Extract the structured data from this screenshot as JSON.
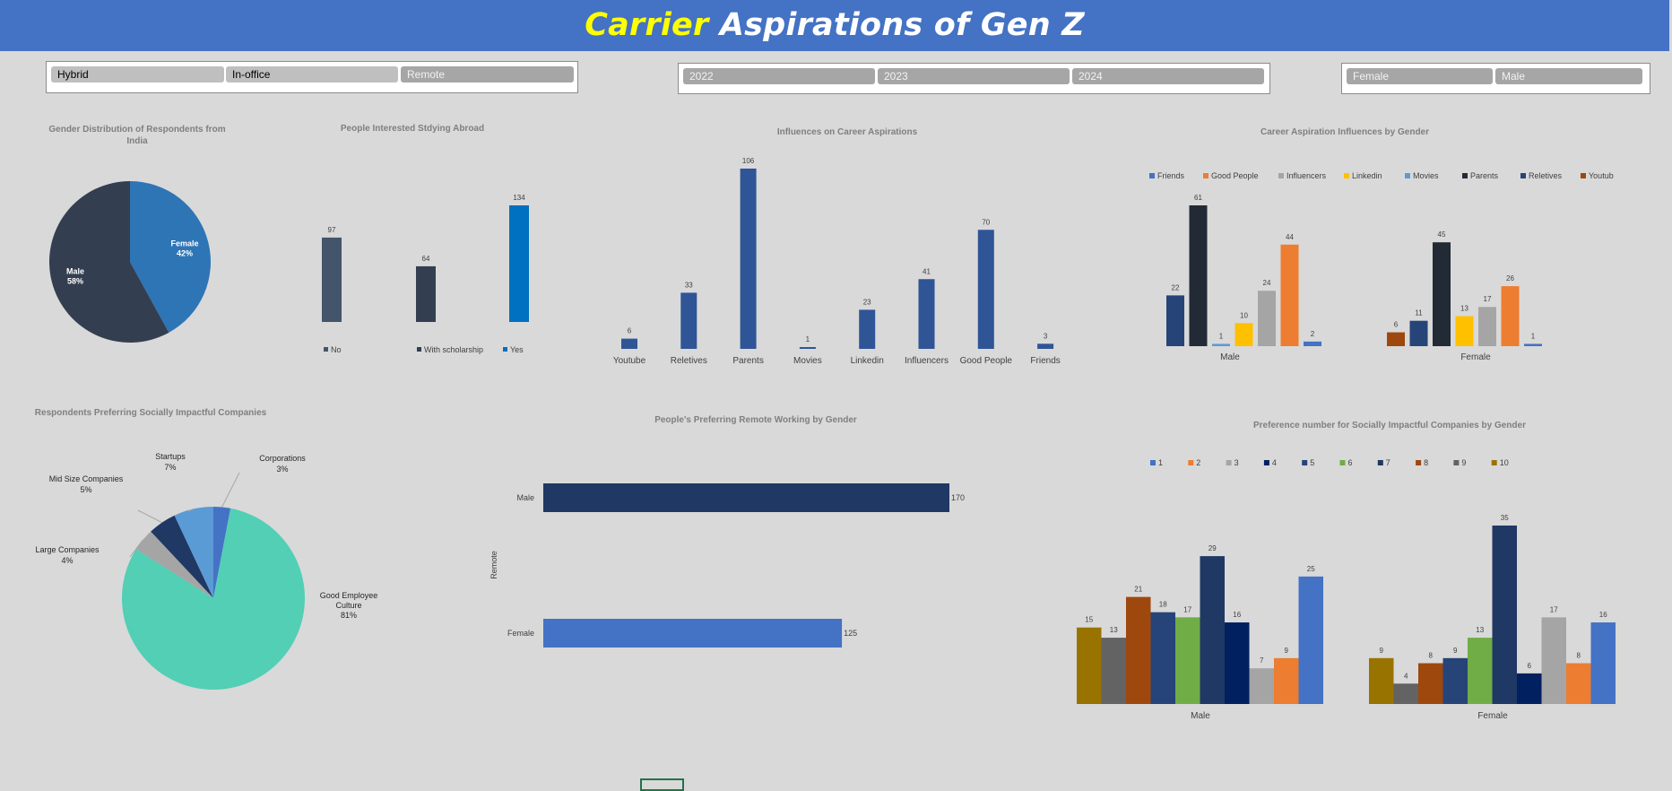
{
  "title": {
    "part1": "Carrier",
    "part2": "Aspirations of Gen Z"
  },
  "slicers": {
    "work_mode": [
      "Hybrid",
      "In-office",
      "Remote"
    ],
    "year": [
      "2022",
      "2023",
      "2024"
    ],
    "gender": [
      "Female",
      "Male"
    ]
  },
  "colors": {
    "banner": "#4472c4",
    "title_highlight": "#ffff00",
    "background": "#d9d9d9"
  },
  "chart_data": [
    {
      "id": "gender_pie",
      "type": "pie",
      "title": "Gender Distribution of Respondents from India",
      "slices": [
        {
          "label": "Female",
          "value": 42,
          "display": "42%",
          "color": "#2e75b6"
        },
        {
          "label": "Male",
          "value": 58,
          "display": "58%",
          "color": "#333f50"
        }
      ]
    },
    {
      "id": "abroad_bar",
      "type": "bar",
      "title": "People Interested Stdying Abroad",
      "categories": [
        "No",
        "With scholarship",
        "Yes"
      ],
      "values": [
        97,
        64,
        134
      ],
      "colors": [
        "#44546a",
        "#333f50",
        "#0070c0"
      ],
      "legend": [
        "No",
        "With scholarship",
        "Yes"
      ],
      "legend_position": "bottom"
    },
    {
      "id": "influences_bar",
      "type": "bar",
      "title": "Influences on Career Aspirations",
      "categories": [
        "Youtube",
        "Reletives",
        "Parents",
        "Movies",
        "Linkedin",
        "Influencers",
        "Good People",
        "Friends"
      ],
      "values": [
        6,
        33,
        106,
        1,
        23,
        41,
        70,
        3
      ],
      "color": "#2f5597"
    },
    {
      "id": "influences_gender",
      "type": "bar",
      "title": "Career Aspiration Influences by Gender",
      "legend_position": "top",
      "legend": [
        {
          "name": "Friends",
          "color": "#4472c4"
        },
        {
          "name": "Good People",
          "color": "#ed7d31"
        },
        {
          "name": "Influencers",
          "color": "#a5a5a5"
        },
        {
          "name": "Linkedin",
          "color": "#ffc000"
        },
        {
          "name": "Movies",
          "color": "#5b9bd5"
        },
        {
          "name": "Parents",
          "color": "#222a35"
        },
        {
          "name": "Reletives",
          "color": "#264478"
        },
        {
          "name": "Youtube",
          "color": "#9e480e"
        }
      ],
      "groups": [
        {
          "label": "Male",
          "bars": [
            {
              "series": "Reletives",
              "value": 22
            },
            {
              "series": "Parents",
              "value": 61
            },
            {
              "series": "Movies",
              "value": 1
            },
            {
              "series": "Linkedin",
              "value": 10
            },
            {
              "series": "Influencers",
              "value": 24
            },
            {
              "series": "Good People",
              "value": 44
            },
            {
              "series": "Friends",
              "value": 2
            }
          ]
        },
        {
          "label": "Female",
          "bars": [
            {
              "series": "Youtube",
              "value": 6
            },
            {
              "series": "Reletives",
              "value": 11
            },
            {
              "series": "Parents",
              "value": 45
            },
            {
              "series": "Linkedin",
              "value": 13
            },
            {
              "series": "Influencers",
              "value": 17
            },
            {
              "series": "Good People",
              "value": 26
            },
            {
              "series": "Friends",
              "value": 1
            }
          ]
        }
      ]
    },
    {
      "id": "social_pie",
      "type": "pie",
      "title": "Respondents Preferring Socially Impactful Companies",
      "slices": [
        {
          "label": "Corporations",
          "value": 3,
          "display": "3%",
          "color": "#4472c4"
        },
        {
          "label": "Good Employee Culture",
          "value": 81,
          "display": "81%",
          "color": "#52cfb4"
        },
        {
          "label": "Large Companies",
          "value": 4,
          "display": "4%",
          "color": "#a5a5a5"
        },
        {
          "label": "Mid Size Companies",
          "value": 5,
          "display": "5%",
          "color": "#203864"
        },
        {
          "label": "Startups",
          "value": 7,
          "display": "7%",
          "color": "#5b9bd5"
        }
      ]
    },
    {
      "id": "remote_hbar",
      "type": "bar",
      "orientation": "horizontal",
      "title": "People's Preferring Remote Working by Gender",
      "ylabel": "Remote",
      "categories": [
        "Male",
        "Female"
      ],
      "values": [
        170,
        125
      ],
      "colors": [
        "#1f3864",
        "#4472c4"
      ]
    },
    {
      "id": "pref_gender",
      "type": "bar",
      "title": "Preference number for Socially Impactful Companies by Gender",
      "legend_position": "top",
      "legend": [
        {
          "name": "1",
          "color": "#4472c4"
        },
        {
          "name": "2",
          "color": "#ed7d31"
        },
        {
          "name": "3",
          "color": "#a5a5a5"
        },
        {
          "name": "4",
          "color": "#002060"
        },
        {
          "name": "5",
          "color": "#264478"
        },
        {
          "name": "6",
          "color": "#70ad47"
        },
        {
          "name": "7",
          "color": "#203864"
        },
        {
          "name": "8",
          "color": "#9e480e"
        },
        {
          "name": "9",
          "color": "#636363"
        },
        {
          "name": "10",
          "color": "#997300"
        }
      ],
      "groups": [
        {
          "label": "Male",
          "bars": [
            {
              "series": "10",
              "value": 15
            },
            {
              "series": "9",
              "value": 13
            },
            {
              "series": "8",
              "value": 21
            },
            {
              "series": "5",
              "value": 18
            },
            {
              "series": "6",
              "value": 17
            },
            {
              "series": "7",
              "value": 29
            },
            {
              "series": "4",
              "value": 16
            },
            {
              "series": "3",
              "value": 7
            },
            {
              "series": "2",
              "value": 9
            },
            {
              "series": "1",
              "value": 25
            }
          ]
        },
        {
          "label": "Female",
          "bars": [
            {
              "series": "10",
              "value": 9
            },
            {
              "series": "9",
              "value": 4
            },
            {
              "series": "8",
              "value": 8
            },
            {
              "series": "5",
              "value": 9
            },
            {
              "series": "6",
              "value": 13
            },
            {
              "series": "7",
              "value": 35
            },
            {
              "series": "4",
              "value": 6
            },
            {
              "series": "3",
              "value": 17
            },
            {
              "series": "2",
              "value": 8
            },
            {
              "series": "1",
              "value": 16
            }
          ]
        }
      ]
    }
  ]
}
